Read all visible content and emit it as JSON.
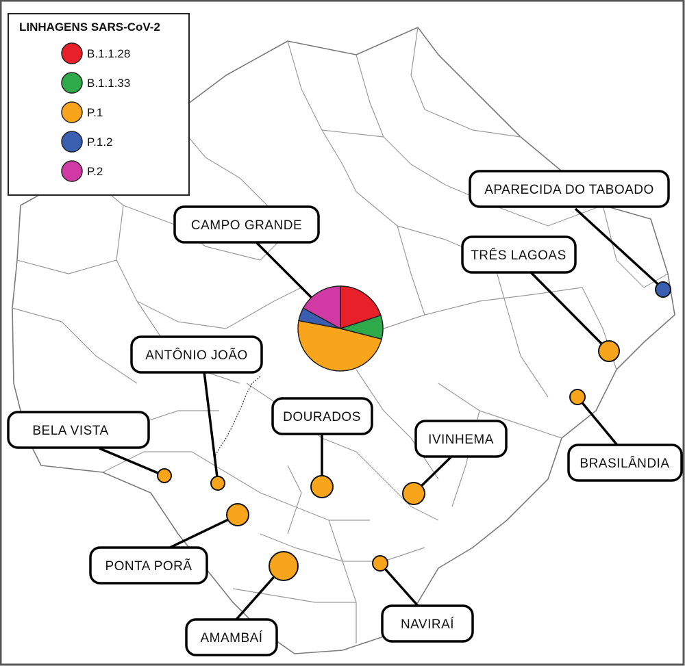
{
  "legend": {
    "title": "LINHAGENS SARS-CoV-2",
    "items": [
      {
        "label": "B.1.1.28",
        "color": "#e8202a"
      },
      {
        "label": "B.1.1.33",
        "color": "#2eaa4a"
      },
      {
        "label": "P.1",
        "color": "#f8a51c"
      },
      {
        "label": "P.1.2",
        "color": "#3a5fb0"
      },
      {
        "label": "P.2",
        "color": "#d13aa4"
      }
    ]
  },
  "cities": {
    "campo_grande": {
      "name": "CAMPO GRANDE"
    },
    "aparecida": {
      "name": "APARECIDA DO TABOADO",
      "lineage": "P.1.2"
    },
    "tres_lagoas": {
      "name": "TRÊS LAGOAS",
      "lineage": "P.1"
    },
    "brasilandia": {
      "name": "BRASILÂNDIA",
      "lineage": "P.1"
    },
    "antonio_joao": {
      "name": "ANTÔNIO JOÃO",
      "lineage": "P.1"
    },
    "bela_vista": {
      "name": "BELA VISTA",
      "lineage": "P.1"
    },
    "dourados": {
      "name": "DOURADOS",
      "lineage": "P.1"
    },
    "ivinhema": {
      "name": "IVINHEMA",
      "lineage": "P.1"
    },
    "ponta_pora": {
      "name": "PONTA PORÃ",
      "lineage": "P.1"
    },
    "amambai": {
      "name": "AMAMBAÍ",
      "lineage": "P.1"
    },
    "navirai": {
      "name": "NAVIRAÍ",
      "lineage": "P.1"
    }
  },
  "campo_grande_pie": [
    {
      "lineage": "B.1.1.28",
      "share": 0.2
    },
    {
      "lineage": "B.1.1.33",
      "share": 0.09
    },
    {
      "lineage": "P.1",
      "share": 0.49
    },
    {
      "lineage": "P.1.2",
      "share": 0.05
    },
    {
      "lineage": "P.2",
      "share": 0.17
    }
  ]
}
